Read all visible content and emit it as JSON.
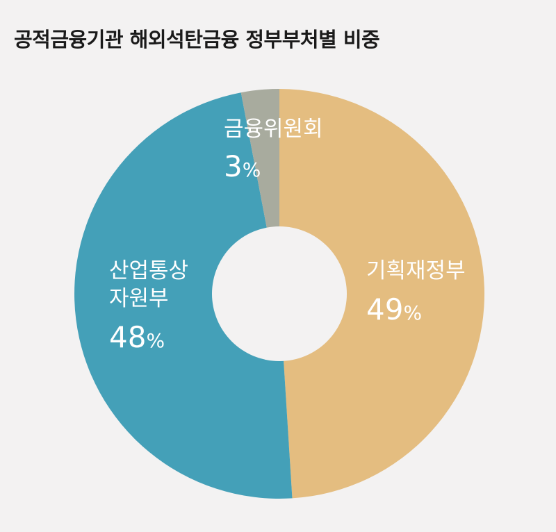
{
  "chart_data": {
    "type": "pie",
    "title": "공적금융기관 해외석탄금융 정부부처별 비중",
    "slices": [
      {
        "name": "기획재정부",
        "lines": [
          "기획재정부"
        ],
        "value": 49,
        "value_label": "49",
        "unit": "%",
        "color": "#e4bd80"
      },
      {
        "name": "산업통상자원부",
        "lines": [
          "산업통상",
          "자원부"
        ],
        "value": 48,
        "value_label": "48",
        "unit": "%",
        "color": "#44a0b8"
      },
      {
        "name": "금융위원회",
        "lines": [
          "금융위원회"
        ],
        "value": 3,
        "value_label": "3",
        "unit": "%",
        "color": "#a8ab9e"
      }
    ]
  }
}
